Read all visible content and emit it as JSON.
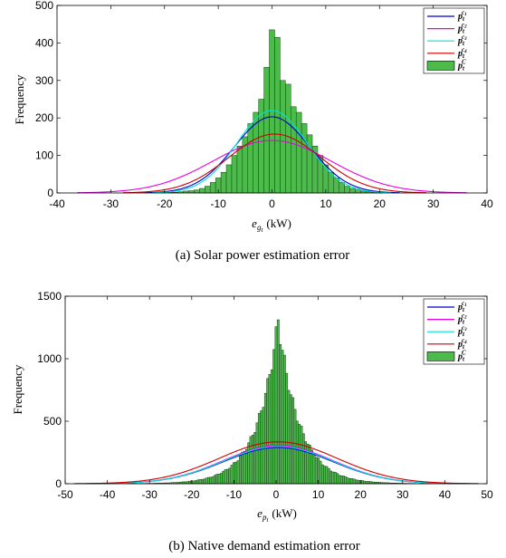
{
  "chart_data": [
    {
      "type": "bar",
      "ylabel": "Frequency",
      "xlabel_base": "e",
      "xlabel_sub": "g",
      "xlabel_subsub": "t",
      "xlabel_unit": "(kW)",
      "caption": "(a) Solar power estimation error",
      "xlim": [
        -40,
        40
      ],
      "ylim": [
        0,
        500
      ],
      "xticks": [
        "-40",
        "-30",
        "-20",
        "-10",
        "0",
        "10",
        "20",
        "30",
        "40"
      ],
      "yticks": [
        "0",
        "100",
        "200",
        "300",
        "400",
        "500"
      ],
      "bin_width": 1,
      "bins_x": [
        -20,
        -19,
        -18,
        -17,
        -16,
        -15,
        -14,
        -13,
        -12,
        -11,
        -10,
        -9,
        -8,
        -7,
        -6,
        -5,
        -4,
        -3,
        -2,
        -1,
        0,
        1,
        2,
        3,
        4,
        5,
        6,
        7,
        8,
        9,
        10,
        11,
        12,
        13,
        14,
        15,
        16,
        17,
        18,
        19,
        20
      ],
      "bins_values": [
        2,
        2,
        2,
        3,
        5,
        6,
        8,
        12,
        18,
        28,
        40,
        55,
        75,
        100,
        125,
        150,
        185,
        215,
        250,
        335,
        435,
        415,
        300,
        290,
        230,
        215,
        185,
        155,
        125,
        100,
        75,
        55,
        40,
        28,
        18,
        12,
        8,
        5,
        3,
        2,
        1
      ],
      "legend": [
        {
          "base": "p",
          "sub": "t",
          "sup": "c",
          "supsub": "1",
          "color": "#0000cc"
        },
        {
          "base": "p",
          "sub": "t",
          "sup": "c",
          "supsub": "2",
          "color": "#e600e6"
        },
        {
          "base": "p",
          "sub": "t",
          "sup": "c",
          "supsub": "3",
          "color": "#00e0e0"
        },
        {
          "base": "p",
          "sub": "t",
          "sup": "c",
          "supsub": "4",
          "color": "#cc0000"
        },
        {
          "base": "p",
          "sub": "t",
          "sup": "C",
          "supsub": "",
          "color": "#4cbb4c"
        }
      ],
      "fits": [
        {
          "mu": 0,
          "sigma": 7,
          "peak": 203,
          "color": "#0000cc"
        },
        {
          "mu": 0,
          "sigma": 11,
          "peak": 140,
          "color": "#e600e6"
        },
        {
          "mu": 0,
          "sigma": 6.5,
          "peak": 220,
          "color": "#00e0e0"
        },
        {
          "mu": 0.5,
          "sigma": 8.5,
          "peak": 157,
          "color": "#cc0000"
        }
      ]
    },
    {
      "type": "bar",
      "ylabel": "Frequency",
      "xlabel_base": "e",
      "xlabel_sub": "p",
      "xlabel_subsub": "t",
      "xlabel_unit": "(kW)",
      "caption": "(b) Native demand estimation error",
      "xlim": [
        -50,
        50
      ],
      "ylim": [
        0,
        1500
      ],
      "xticks": [
        "-50",
        "-40",
        "-30",
        "-20",
        "-10",
        "0",
        "10",
        "20",
        "30",
        "40",
        "50"
      ],
      "yticks": [
        "0",
        "500",
        "1000",
        "1500"
      ],
      "bin_width": 0.5,
      "hist_shape": {
        "center": 0.5,
        "peak": 1310,
        "scale": 5,
        "range": [
          -38,
          40
        ]
      },
      "legend": [
        {
          "base": "p",
          "sub": "t",
          "sup": "c",
          "supsub": "1",
          "color": "#0000cc"
        },
        {
          "base": "p",
          "sub": "t",
          "sup": "c",
          "supsub": "2",
          "color": "#e600e6"
        },
        {
          "base": "p",
          "sub": "t",
          "sup": "c",
          "supsub": "3",
          "color": "#00e0e0"
        },
        {
          "base": "p",
          "sub": "t",
          "sup": "c",
          "supsub": "4",
          "color": "#cc0000"
        },
        {
          "base": "p",
          "sub": "t",
          "sup": "C",
          "supsub": "",
          "color": "#4cbb4c"
        }
      ],
      "fits": [
        {
          "mu": 0.5,
          "sigma": 13,
          "peak": 290,
          "color": "#0000cc"
        },
        {
          "mu": 0.5,
          "sigma": 13,
          "peak": 305,
          "color": "#e600e6"
        },
        {
          "mu": 0.5,
          "sigma": 13,
          "peak": 298,
          "color": "#00e0e0"
        },
        {
          "mu": 0.5,
          "sigma": 14,
          "peak": 335,
          "color": "#cc0000"
        }
      ]
    }
  ]
}
